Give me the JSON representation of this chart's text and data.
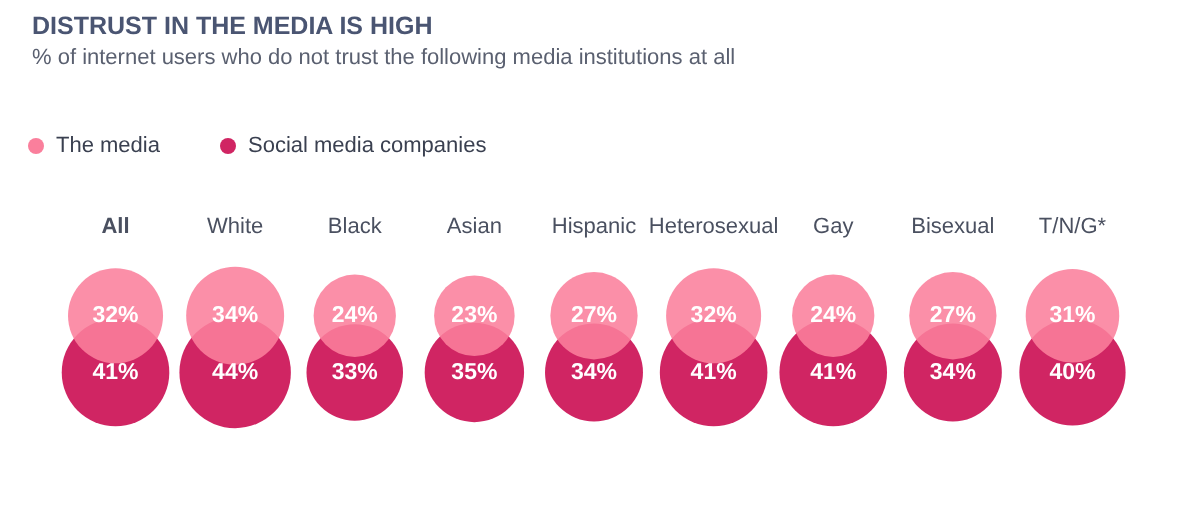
{
  "chart_data": {
    "type": "other",
    "title": "DISTRUST IN THE MEDIA IS HIGH",
    "subtitle": "% of internet users who do not trust the following media institutions at all",
    "categories": [
      "All",
      "White",
      "Black",
      "Asian",
      "Hispanic",
      "Heterosexual",
      "Gay",
      "Bisexual",
      "T/N/G*"
    ],
    "legend": "top left",
    "series": [
      {
        "name": "The media",
        "color": "#fa7f9c",
        "values": [
          32,
          34,
          24,
          23,
          27,
          32,
          24,
          27,
          31
        ],
        "value_labels": [
          "32%",
          "34%",
          "24%",
          "23%",
          "27%",
          "32%",
          "24%",
          "27%",
          "31%"
        ]
      },
      {
        "name": "Social media companies",
        "color": "#d02563",
        "values": [
          41,
          44,
          33,
          35,
          34,
          41,
          41,
          34,
          40
        ],
        "value_labels": [
          "41%",
          "44%",
          "33%",
          "35%",
          "34%",
          "41%",
          "41%",
          "34%",
          "40%"
        ]
      }
    ]
  }
}
